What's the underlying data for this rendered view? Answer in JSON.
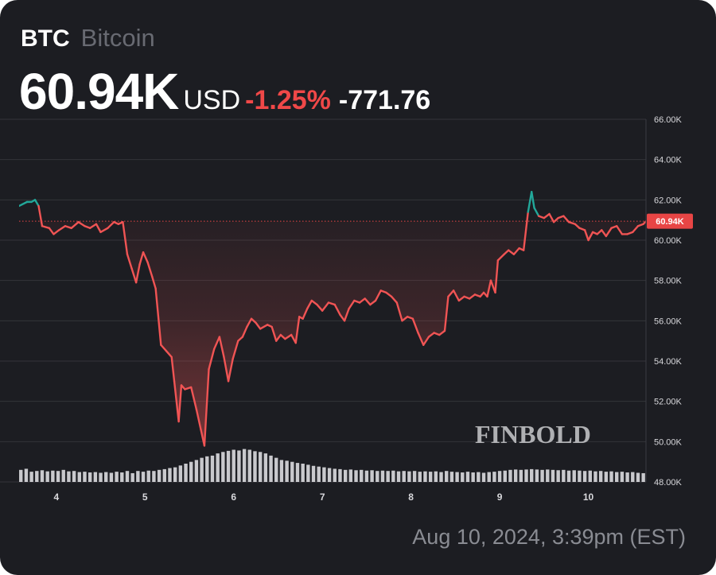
{
  "header": {
    "ticker": "BTC",
    "name": "Bitcoin",
    "price": "60.94K",
    "currency": "USD",
    "change_pct": "-1.25%",
    "change_abs": "-771.76"
  },
  "timestamp": "Aug 10, 2024, 3:39pm (EST)",
  "watermark": "FINBOLD",
  "colors": {
    "background": "#1c1d22",
    "line_down": "#f05454",
    "line_up": "#22a89a",
    "area_fill": "#f05454",
    "volume": "#c9c9cd",
    "grid": "#33343a",
    "price_tag": "#e84545"
  },
  "chart_data": {
    "type": "line",
    "x_ticks": [
      "4",
      "5",
      "6",
      "7",
      "8",
      "9",
      "10"
    ],
    "x_range": [
      3.58,
      10.65
    ],
    "y_ticks": [
      "66.00K",
      "64.00K",
      "62.00K",
      "60.00K",
      "58.00K",
      "56.00K",
      "54.00K",
      "52.00K",
      "50.00K",
      "48.00K"
    ],
    "y_tick_values": [
      66,
      64,
      62,
      60,
      58,
      56,
      54,
      52,
      50,
      48
    ],
    "ylim": [
      48,
      66
    ],
    "current_price_label": "60.94K",
    "current_price": 60.94,
    "grid": true,
    "series": [
      {
        "values": [
          [
            3.58,
            61.7
          ],
          [
            3.67,
            61.9
          ],
          [
            3.72,
            61.9
          ],
          [
            3.76,
            62.0
          ],
          [
            3.8,
            61.7
          ],
          [
            3.84,
            60.7
          ],
          [
            3.92,
            60.6
          ],
          [
            3.97,
            60.3
          ],
          [
            4.03,
            60.5
          ],
          [
            4.1,
            60.7
          ],
          [
            4.17,
            60.6
          ],
          [
            4.25,
            60.9
          ],
          [
            4.32,
            60.7
          ],
          [
            4.38,
            60.6
          ],
          [
            4.45,
            60.8
          ],
          [
            4.5,
            60.4
          ],
          [
            4.58,
            60.6
          ],
          [
            4.65,
            60.9
          ],
          [
            4.7,
            60.8
          ],
          [
            4.75,
            60.9
          ],
          [
            4.8,
            59.3
          ],
          [
            4.85,
            58.6
          ],
          [
            4.9,
            57.9
          ],
          [
            4.94,
            58.8
          ],
          [
            4.98,
            59.4
          ],
          [
            5.03,
            58.9
          ],
          [
            5.08,
            58.2
          ],
          [
            5.12,
            57.6
          ],
          [
            5.18,
            54.8
          ],
          [
            5.24,
            54.5
          ],
          [
            5.3,
            54.2
          ],
          [
            5.33,
            53.0
          ],
          [
            5.38,
            51.0
          ],
          [
            5.41,
            52.8
          ],
          [
            5.45,
            52.6
          ],
          [
            5.52,
            52.7
          ],
          [
            5.58,
            51.6
          ],
          [
            5.63,
            50.6
          ],
          [
            5.67,
            49.8
          ],
          [
            5.72,
            53.6
          ],
          [
            5.78,
            54.6
          ],
          [
            5.84,
            55.2
          ],
          [
            5.89,
            54.2
          ],
          [
            5.94,
            53.0
          ],
          [
            5.99,
            54.1
          ],
          [
            6.05,
            55.0
          ],
          [
            6.1,
            55.2
          ],
          [
            6.15,
            55.7
          ],
          [
            6.2,
            56.1
          ],
          [
            6.25,
            55.9
          ],
          [
            6.3,
            55.6
          ],
          [
            6.38,
            55.8
          ],
          [
            6.43,
            55.7
          ],
          [
            6.48,
            55.0
          ],
          [
            6.53,
            55.3
          ],
          [
            6.58,
            55.1
          ],
          [
            6.65,
            55.3
          ],
          [
            6.7,
            54.9
          ],
          [
            6.74,
            56.2
          ],
          [
            6.78,
            56.1
          ],
          [
            6.83,
            56.6
          ],
          [
            6.88,
            57.0
          ],
          [
            6.94,
            56.8
          ],
          [
            7.0,
            56.5
          ],
          [
            7.07,
            56.9
          ],
          [
            7.14,
            56.8
          ],
          [
            7.2,
            56.3
          ],
          [
            7.25,
            56.0
          ],
          [
            7.3,
            56.6
          ],
          [
            7.36,
            57.0
          ],
          [
            7.42,
            56.9
          ],
          [
            7.48,
            57.1
          ],
          [
            7.54,
            56.8
          ],
          [
            7.6,
            57.0
          ],
          [
            7.66,
            57.5
          ],
          [
            7.72,
            57.4
          ],
          [
            7.78,
            57.2
          ],
          [
            7.84,
            56.9
          ],
          [
            7.9,
            56.0
          ],
          [
            7.96,
            56.2
          ],
          [
            8.02,
            56.1
          ],
          [
            8.08,
            55.4
          ],
          [
            8.14,
            54.8
          ],
          [
            8.2,
            55.2
          ],
          [
            8.26,
            55.4
          ],
          [
            8.32,
            55.3
          ],
          [
            8.38,
            55.5
          ],
          [
            8.42,
            57.2
          ],
          [
            8.48,
            57.5
          ],
          [
            8.54,
            57.0
          ],
          [
            8.6,
            57.2
          ],
          [
            8.66,
            57.1
          ],
          [
            8.72,
            57.3
          ],
          [
            8.78,
            57.2
          ],
          [
            8.82,
            57.4
          ],
          [
            8.86,
            57.2
          ],
          [
            8.9,
            58.0
          ],
          [
            8.95,
            57.4
          ],
          [
            8.98,
            59.0
          ],
          [
            9.05,
            59.3
          ],
          [
            9.1,
            59.5
          ],
          [
            9.16,
            59.3
          ],
          [
            9.22,
            59.6
          ],
          [
            9.27,
            59.5
          ],
          [
            9.32,
            61.4
          ],
          [
            9.36,
            62.4
          ],
          [
            9.39,
            61.6
          ],
          [
            9.44,
            61.2
          ],
          [
            9.5,
            61.1
          ],
          [
            9.56,
            61.3
          ],
          [
            9.61,
            60.9
          ],
          [
            9.66,
            61.1
          ],
          [
            9.72,
            61.2
          ],
          [
            9.78,
            60.9
          ],
          [
            9.85,
            60.8
          ],
          [
            9.9,
            60.6
          ],
          [
            9.96,
            60.5
          ],
          [
            10.0,
            60.0
          ],
          [
            10.05,
            60.4
          ],
          [
            10.1,
            60.3
          ],
          [
            10.15,
            60.5
          ],
          [
            10.2,
            60.2
          ],
          [
            10.26,
            60.6
          ],
          [
            10.32,
            60.7
          ],
          [
            10.38,
            60.3
          ],
          [
            10.44,
            60.3
          ],
          [
            10.5,
            60.4
          ],
          [
            10.56,
            60.7
          ],
          [
            10.62,
            60.8
          ],
          [
            10.65,
            60.94
          ]
        ]
      },
      {
        "type": "bar",
        "values": [
          [
            3.6,
            0.33
          ],
          [
            3.66,
            0.36
          ],
          [
            3.72,
            0.28
          ],
          [
            3.78,
            0.3
          ],
          [
            3.84,
            0.32
          ],
          [
            3.9,
            0.29
          ],
          [
            3.96,
            0.31
          ],
          [
            4.02,
            0.3
          ],
          [
            4.08,
            0.33
          ],
          [
            4.14,
            0.29
          ],
          [
            4.2,
            0.3
          ],
          [
            4.26,
            0.27
          ],
          [
            4.32,
            0.28
          ],
          [
            4.38,
            0.26
          ],
          [
            4.44,
            0.27
          ],
          [
            4.5,
            0.25
          ],
          [
            4.56,
            0.27
          ],
          [
            4.62,
            0.25
          ],
          [
            4.68,
            0.28
          ],
          [
            4.74,
            0.26
          ],
          [
            4.8,
            0.3
          ],
          [
            4.86,
            0.24
          ],
          [
            4.92,
            0.3
          ],
          [
            4.98,
            0.28
          ],
          [
            5.04,
            0.31
          ],
          [
            5.1,
            0.3
          ],
          [
            5.16,
            0.33
          ],
          [
            5.22,
            0.35
          ],
          [
            5.28,
            0.38
          ],
          [
            5.34,
            0.4
          ],
          [
            5.4,
            0.45
          ],
          [
            5.46,
            0.5
          ],
          [
            5.52,
            0.55
          ],
          [
            5.58,
            0.6
          ],
          [
            5.64,
            0.66
          ],
          [
            5.7,
            0.7
          ],
          [
            5.76,
            0.72
          ],
          [
            5.82,
            0.78
          ],
          [
            5.88,
            0.82
          ],
          [
            5.94,
            0.85
          ],
          [
            6.0,
            0.88
          ],
          [
            6.06,
            0.86
          ],
          [
            6.12,
            0.9
          ],
          [
            6.18,
            0.88
          ],
          [
            6.24,
            0.84
          ],
          [
            6.3,
            0.82
          ],
          [
            6.36,
            0.78
          ],
          [
            6.42,
            0.72
          ],
          [
            6.48,
            0.66
          ],
          [
            6.54,
            0.6
          ],
          [
            6.6,
            0.58
          ],
          [
            6.66,
            0.55
          ],
          [
            6.72,
            0.52
          ],
          [
            6.78,
            0.5
          ],
          [
            6.84,
            0.47
          ],
          [
            6.9,
            0.44
          ],
          [
            6.96,
            0.42
          ],
          [
            7.02,
            0.4
          ],
          [
            7.08,
            0.38
          ],
          [
            7.14,
            0.36
          ],
          [
            7.2,
            0.35
          ],
          [
            7.26,
            0.33
          ],
          [
            7.32,
            0.34
          ],
          [
            7.38,
            0.32
          ],
          [
            7.44,
            0.33
          ],
          [
            7.5,
            0.31
          ],
          [
            7.56,
            0.32
          ],
          [
            7.62,
            0.3
          ],
          [
            7.68,
            0.31
          ],
          [
            7.74,
            0.3
          ],
          [
            7.8,
            0.31
          ],
          [
            7.86,
            0.29
          ],
          [
            7.92,
            0.3
          ],
          [
            7.98,
            0.29
          ],
          [
            8.04,
            0.3
          ],
          [
            8.1,
            0.28
          ],
          [
            8.16,
            0.29
          ],
          [
            8.22,
            0.28
          ],
          [
            8.28,
            0.29
          ],
          [
            8.34,
            0.27
          ],
          [
            8.4,
            0.3
          ],
          [
            8.46,
            0.28
          ],
          [
            8.52,
            0.27
          ],
          [
            8.58,
            0.26
          ],
          [
            8.64,
            0.28
          ],
          [
            8.7,
            0.26
          ],
          [
            8.76,
            0.27
          ],
          [
            8.82,
            0.25
          ],
          [
            8.88,
            0.27
          ],
          [
            8.94,
            0.28
          ],
          [
            9.0,
            0.3
          ],
          [
            9.06,
            0.31
          ],
          [
            9.12,
            0.33
          ],
          [
            9.18,
            0.34
          ],
          [
            9.24,
            0.33
          ],
          [
            9.3,
            0.34
          ],
          [
            9.36,
            0.35
          ],
          [
            9.42,
            0.34
          ],
          [
            9.48,
            0.33
          ],
          [
            9.54,
            0.34
          ],
          [
            9.6,
            0.33
          ],
          [
            9.66,
            0.32
          ],
          [
            9.72,
            0.33
          ],
          [
            9.78,
            0.31
          ],
          [
            9.84,
            0.32
          ],
          [
            9.9,
            0.31
          ],
          [
            9.96,
            0.3
          ],
          [
            10.02,
            0.31
          ],
          [
            10.08,
            0.29
          ],
          [
            10.14,
            0.3
          ],
          [
            10.2,
            0.28
          ],
          [
            10.26,
            0.29
          ],
          [
            10.32,
            0.27
          ],
          [
            10.38,
            0.28
          ],
          [
            10.44,
            0.26
          ],
          [
            10.5,
            0.27
          ],
          [
            10.56,
            0.25
          ],
          [
            10.62,
            0.24
          ]
        ]
      }
    ]
  }
}
